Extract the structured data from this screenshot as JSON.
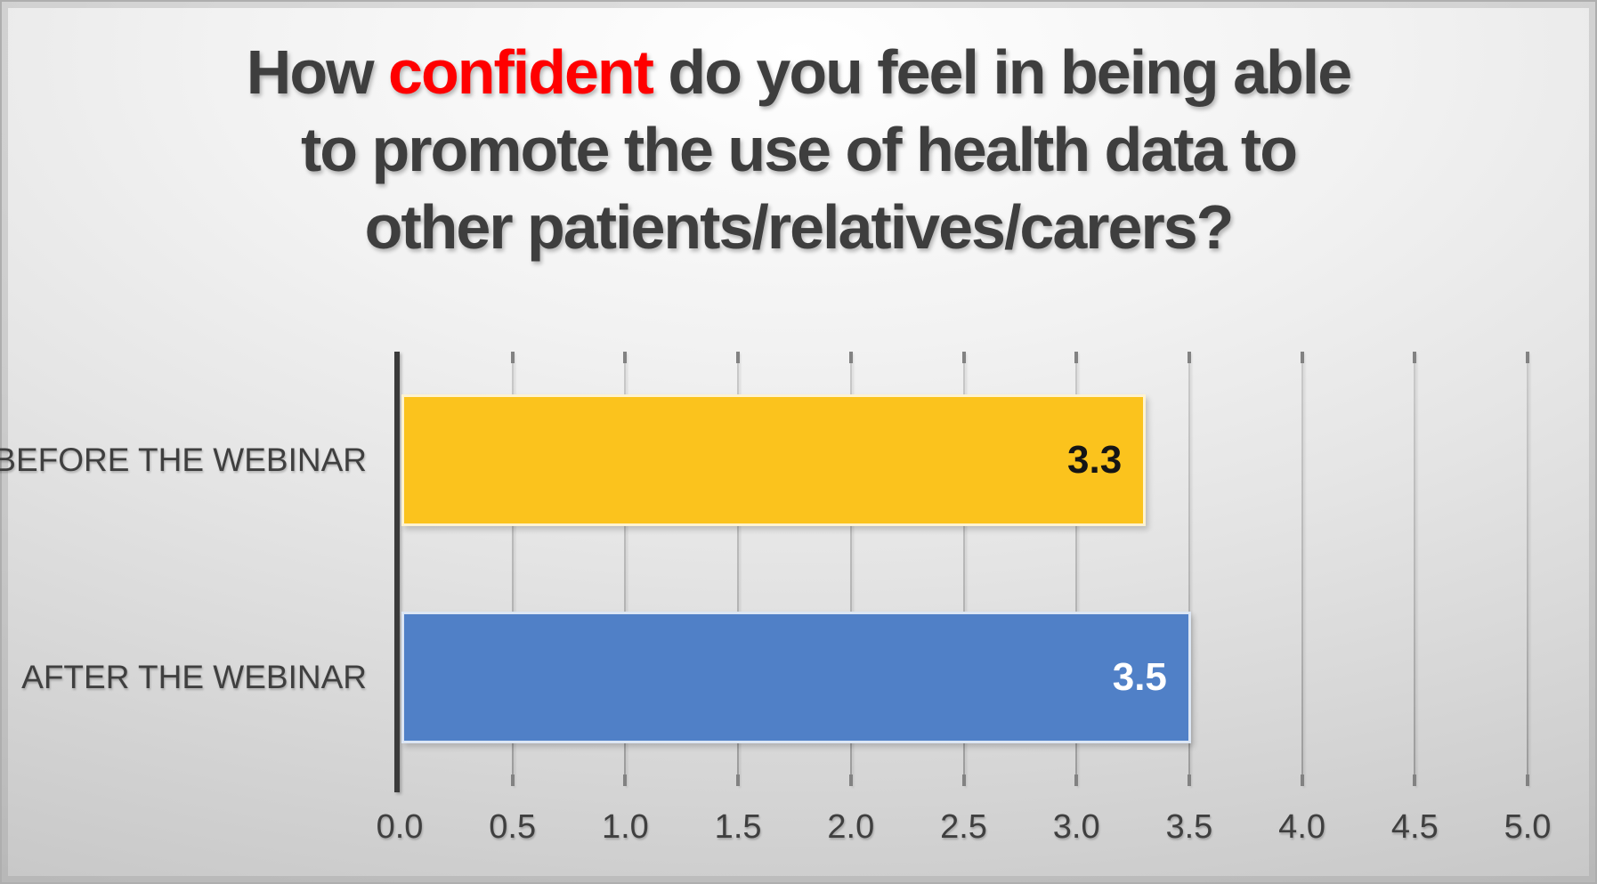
{
  "title": {
    "line1_pre": "How ",
    "line1_emphasis": "confident",
    "line1_post": " do you feel in being able",
    "line2": "to promote the use of health data to",
    "line3": "other patients/relatives/carers?",
    "color": "#3E3E3E",
    "emphasis_color": "#FF0000"
  },
  "chart_data": {
    "type": "bar",
    "orientation": "horizontal",
    "title": "How confident do you feel in being able to promote the use of health data to other patients/relatives/carers?",
    "categories": [
      "BEFORE THE WEBINAR",
      "AFTER THE WEBINAR"
    ],
    "values": [
      3.3,
      3.5
    ],
    "xlim": [
      0,
      5
    ],
    "grid": true,
    "legend_position": "none",
    "bars": [
      {
        "category": "BEFORE THE WEBINAR",
        "value": 3.3,
        "data_label": "3.3",
        "color": "#FBC31D",
        "data_label_color": "#151515"
      },
      {
        "category": "AFTER THE WEBINAR",
        "value": 3.5,
        "data_label": "3.5",
        "color": "#5080C7",
        "data_label_color": "#FFFFFF"
      }
    ],
    "x_ticks": [
      {
        "value": 0.0,
        "label": "0.0"
      },
      {
        "value": 0.5,
        "label": "0.5"
      },
      {
        "value": 1.0,
        "label": "1.0"
      },
      {
        "value": 1.5,
        "label": "1.5"
      },
      {
        "value": 2.0,
        "label": "2.0"
      },
      {
        "value": 2.5,
        "label": "2.5"
      },
      {
        "value": 3.0,
        "label": "3.0"
      },
      {
        "value": 3.5,
        "label": "3.5"
      },
      {
        "value": 4.0,
        "label": "4.0"
      },
      {
        "value": 4.5,
        "label": "4.5"
      },
      {
        "value": 5.0,
        "label": "5.0"
      }
    ],
    "axis_color": "#3A3A3A",
    "gridline_color": "#B3B3B3"
  }
}
